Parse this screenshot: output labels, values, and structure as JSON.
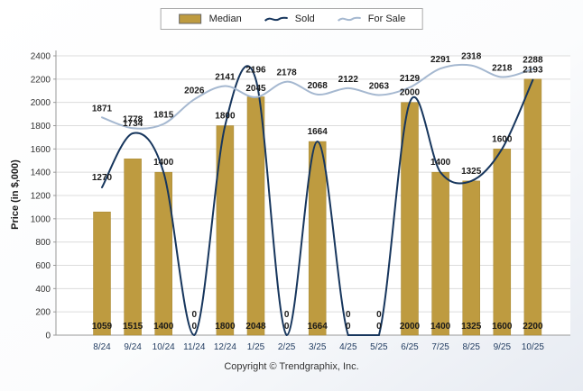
{
  "footer": {
    "copyright": "Copyright © Trendgraphix, Inc."
  },
  "chart_data": {
    "type": "bar",
    "title": "",
    "xlabel": "",
    "ylabel": "Price (in $,000)",
    "ylim": [
      0,
      2400
    ],
    "ytick_step": 200,
    "grid": true,
    "legend_position": "top",
    "categories": [
      "8/24",
      "9/24",
      "10/24",
      "11/24",
      "12/24",
      "1/25",
      "2/25",
      "3/25",
      "4/25",
      "5/25",
      "6/25",
      "7/25",
      "8/25",
      "9/25",
      "10/25"
    ],
    "series": [
      {
        "name": "Median",
        "type": "bar",
        "color": "#BE9B40",
        "values": [
          1059,
          1515,
          1400,
          0,
          1800,
          2048,
          0,
          1664,
          0,
          0,
          2000,
          1400,
          1325,
          1600,
          2200
        ]
      },
      {
        "name": "Sold",
        "type": "line",
        "color": "#17365D",
        "values": [
          1270,
          1734,
          1400,
          0,
          1800,
          2196,
          0,
          1664,
          0,
          0,
          2000,
          1400,
          1325,
          1600,
          2193
        ]
      },
      {
        "name": "For Sale",
        "type": "line",
        "color": "#A5B8D0",
        "values": [
          1871,
          1778,
          1815,
          2026,
          2141,
          2045,
          2178,
          2068,
          2122,
          2063,
          2129,
          2291,
          2318,
          2218,
          2288
        ]
      }
    ]
  }
}
